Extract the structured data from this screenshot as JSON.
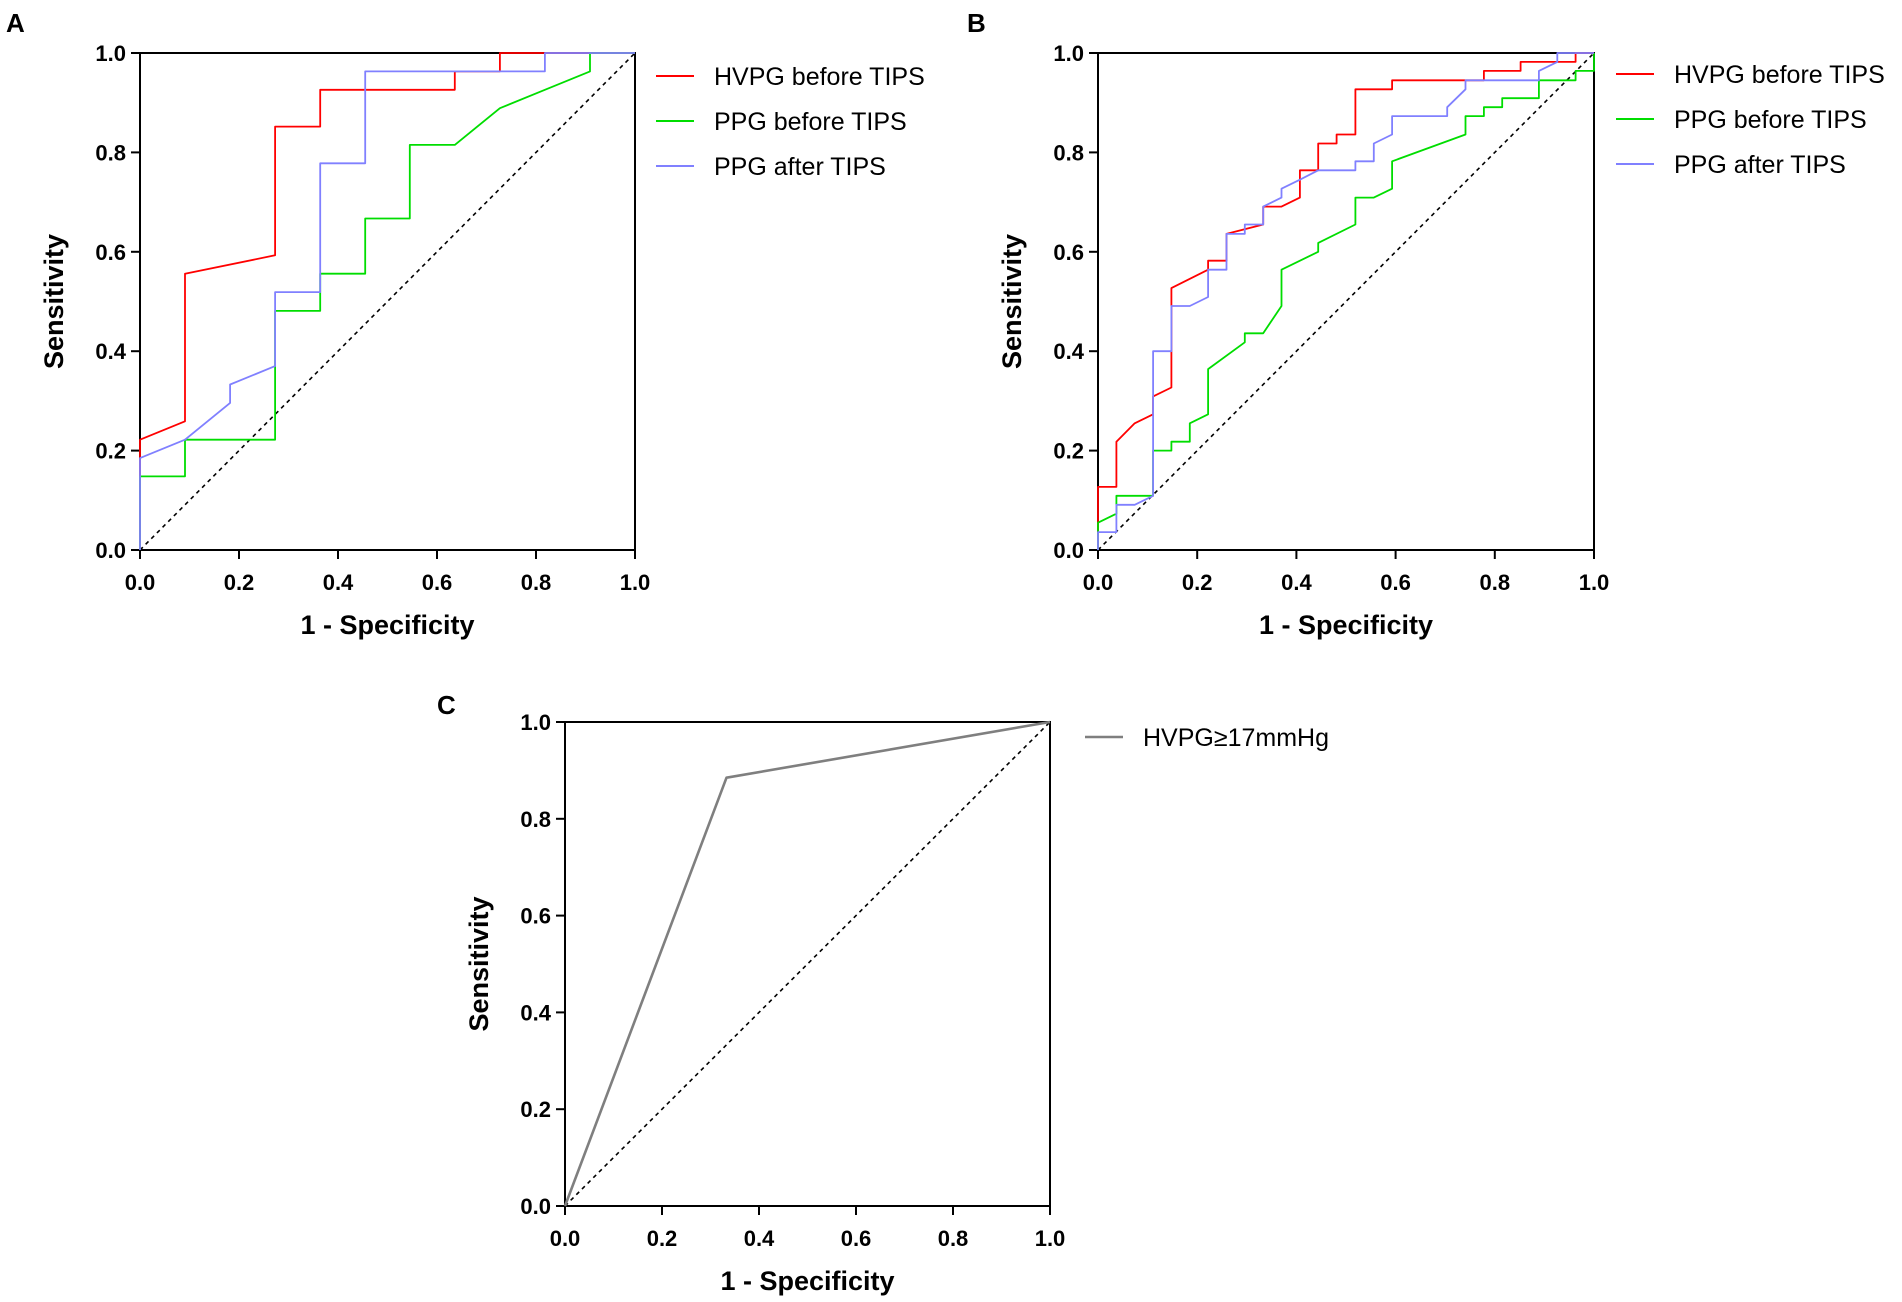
{
  "chart_data": [
    {
      "panel": "A",
      "type": "line",
      "title": "",
      "xlabel": "1 - Specificity",
      "ylabel": "Sensitivity",
      "xlim": [
        0,
        1
      ],
      "ylim": [
        0,
        1
      ],
      "xticks": [
        "0.0",
        "0.2",
        "0.4",
        "0.6",
        "0.8",
        "1.0"
      ],
      "yticks": [
        "0.0",
        "0.2",
        "0.4",
        "0.6",
        "0.8",
        "1.0"
      ],
      "legend_position": "right",
      "reference_line": true,
      "series": [
        {
          "name": "HVPG before TIPS",
          "color": "#ff0000",
          "x": [
            0,
            0,
            0.091,
            0.091,
            0.273,
            0.273,
            0.364,
            0.364,
            0.636,
            0.636,
            0.727,
            0.727,
            1.0
          ],
          "y": [
            0,
            0.222,
            0.259,
            0.556,
            0.593,
            0.852,
            0.852,
            0.926,
            0.926,
            0.963,
            0.963,
            1.0,
            1.0
          ]
        },
        {
          "name": "PPG before TIPS",
          "color": "#00dd00",
          "x": [
            0,
            0,
            0.091,
            0.091,
            0.273,
            0.273,
            0.364,
            0.364,
            0.455,
            0.455,
            0.545,
            0.545,
            0.636,
            0.727,
            0.727,
            0.818,
            0.818,
            0.909,
            0.909,
            1.0
          ],
          "y": [
            0,
            0.148,
            0.148,
            0.222,
            0.222,
            0.481,
            0.481,
            0.556,
            0.556,
            0.667,
            0.667,
            0.815,
            0.815,
            0.889,
            0.889,
            0.926,
            0.926,
            0.963,
            1.0,
            1.0
          ]
        },
        {
          "name": "PPG after TIPS",
          "color": "#8080ff",
          "x": [
            0,
            0,
            0.091,
            0.182,
            0.182,
            0.273,
            0.273,
            0.364,
            0.364,
            0.455,
            0.455,
            0.818,
            0.818,
            1.0
          ],
          "y": [
            0,
            0.185,
            0.222,
            0.296,
            0.333,
            0.37,
            0.519,
            0.519,
            0.778,
            0.778,
            0.963,
            0.963,
            1.0,
            1.0
          ]
        }
      ]
    },
    {
      "panel": "B",
      "type": "line",
      "title": "",
      "xlabel": "1 - Specificity",
      "ylabel": "Sensitivity",
      "xlim": [
        0,
        1
      ],
      "ylim": [
        0,
        1
      ],
      "xticks": [
        "0.0",
        "0.2",
        "0.4",
        "0.6",
        "0.8",
        "1.0"
      ],
      "yticks": [
        "0.0",
        "0.2",
        "0.4",
        "0.6",
        "0.8",
        "1.0"
      ],
      "legend_position": "right",
      "reference_line": true,
      "series": [
        {
          "name": "HVPG before TIPS",
          "color": "#ff0000",
          "x": [
            0,
            0,
            0.037,
            0.037,
            0.074,
            0.111,
            0.111,
            0.148,
            0.148,
            0.222,
            0.222,
            0.259,
            0.259,
            0.333,
            0.333,
            0.37,
            0.407,
            0.407,
            0.444,
            0.444,
            0.481,
            0.481,
            0.519,
            0.519,
            0.593,
            0.593,
            0.63,
            0.63,
            0.778,
            0.778,
            0.852,
            0.852,
            0.963,
            0.963,
            1.0
          ],
          "y": [
            0,
            0.127,
            0.127,
            0.218,
            0.255,
            0.273,
            0.309,
            0.327,
            0.527,
            0.564,
            0.582,
            0.582,
            0.636,
            0.655,
            0.691,
            0.691,
            0.709,
            0.764,
            0.764,
            0.818,
            0.818,
            0.836,
            0.836,
            0.927,
            0.927,
            0.945,
            0.945,
            0.945,
            0.945,
            0.964,
            0.964,
            0.982,
            0.982,
            1.0,
            1.0
          ]
        },
        {
          "name": "PPG before TIPS",
          "color": "#00dd00",
          "x": [
            0,
            0,
            0.037,
            0.037,
            0.111,
            0.111,
            0.148,
            0.148,
            0.185,
            0.185,
            0.222,
            0.222,
            0.296,
            0.296,
            0.333,
            0.37,
            0.37,
            0.444,
            0.444,
            0.519,
            0.519,
            0.556,
            0.556,
            0.593,
            0.593,
            0.741,
            0.741,
            0.778,
            0.778,
            0.815,
            0.815,
            0.889,
            0.889,
            0.963,
            0.963,
            1.0,
            1.0
          ],
          "y": [
            0,
            0.055,
            0.073,
            0.109,
            0.109,
            0.2,
            0.2,
            0.218,
            0.218,
            0.255,
            0.273,
            0.364,
            0.418,
            0.436,
            0.436,
            0.491,
            0.564,
            0.6,
            0.618,
            0.655,
            0.709,
            0.709,
            0.709,
            0.727,
            0.782,
            0.836,
            0.873,
            0.873,
            0.891,
            0.891,
            0.909,
            0.909,
            0.945,
            0.945,
            0.964,
            0.964,
            1.0
          ]
        },
        {
          "name": "PPG after TIPS",
          "color": "#8080ff",
          "x": [
            0,
            0,
            0.037,
            0.037,
            0.074,
            0.111,
            0.111,
            0.148,
            0.148,
            0.185,
            0.185,
            0.222,
            0.222,
            0.259,
            0.259,
            0.296,
            0.296,
            0.333,
            0.333,
            0.37,
            0.37,
            0.407,
            0.444,
            0.519,
            0.519,
            0.556,
            0.556,
            0.593,
            0.593,
            0.704,
            0.704,
            0.741,
            0.741,
            0.889,
            0.889,
            0.926,
            0.926,
            1.0
          ],
          "y": [
            0,
            0.036,
            0.036,
            0.091,
            0.091,
            0.109,
            0.4,
            0.4,
            0.491,
            0.491,
            0.491,
            0.509,
            0.564,
            0.564,
            0.636,
            0.636,
            0.655,
            0.655,
            0.691,
            0.709,
            0.727,
            0.745,
            0.764,
            0.764,
            0.782,
            0.782,
            0.818,
            0.836,
            0.873,
            0.873,
            0.891,
            0.927,
            0.945,
            0.945,
            0.964,
            0.982,
            1.0,
            1.0
          ]
        }
      ]
    },
    {
      "panel": "C",
      "type": "line",
      "title": "",
      "xlabel": "1 - Specificity",
      "ylabel": "Sensitivity",
      "xlim": [
        0,
        1
      ],
      "ylim": [
        0,
        1
      ],
      "xticks": [
        "0.0",
        "0.2",
        "0.4",
        "0.6",
        "0.8",
        "1.0"
      ],
      "yticks": [
        "0.0",
        "0.2",
        "0.4",
        "0.6",
        "0.8",
        "1.0"
      ],
      "legend_position": "right",
      "reference_line": true,
      "series": [
        {
          "name": "HVPG≥17mmHg",
          "color": "#7f7f7f",
          "x": [
            0,
            0.333,
            1.0
          ],
          "y": [
            0,
            0.885,
            1.0
          ]
        }
      ]
    }
  ]
}
